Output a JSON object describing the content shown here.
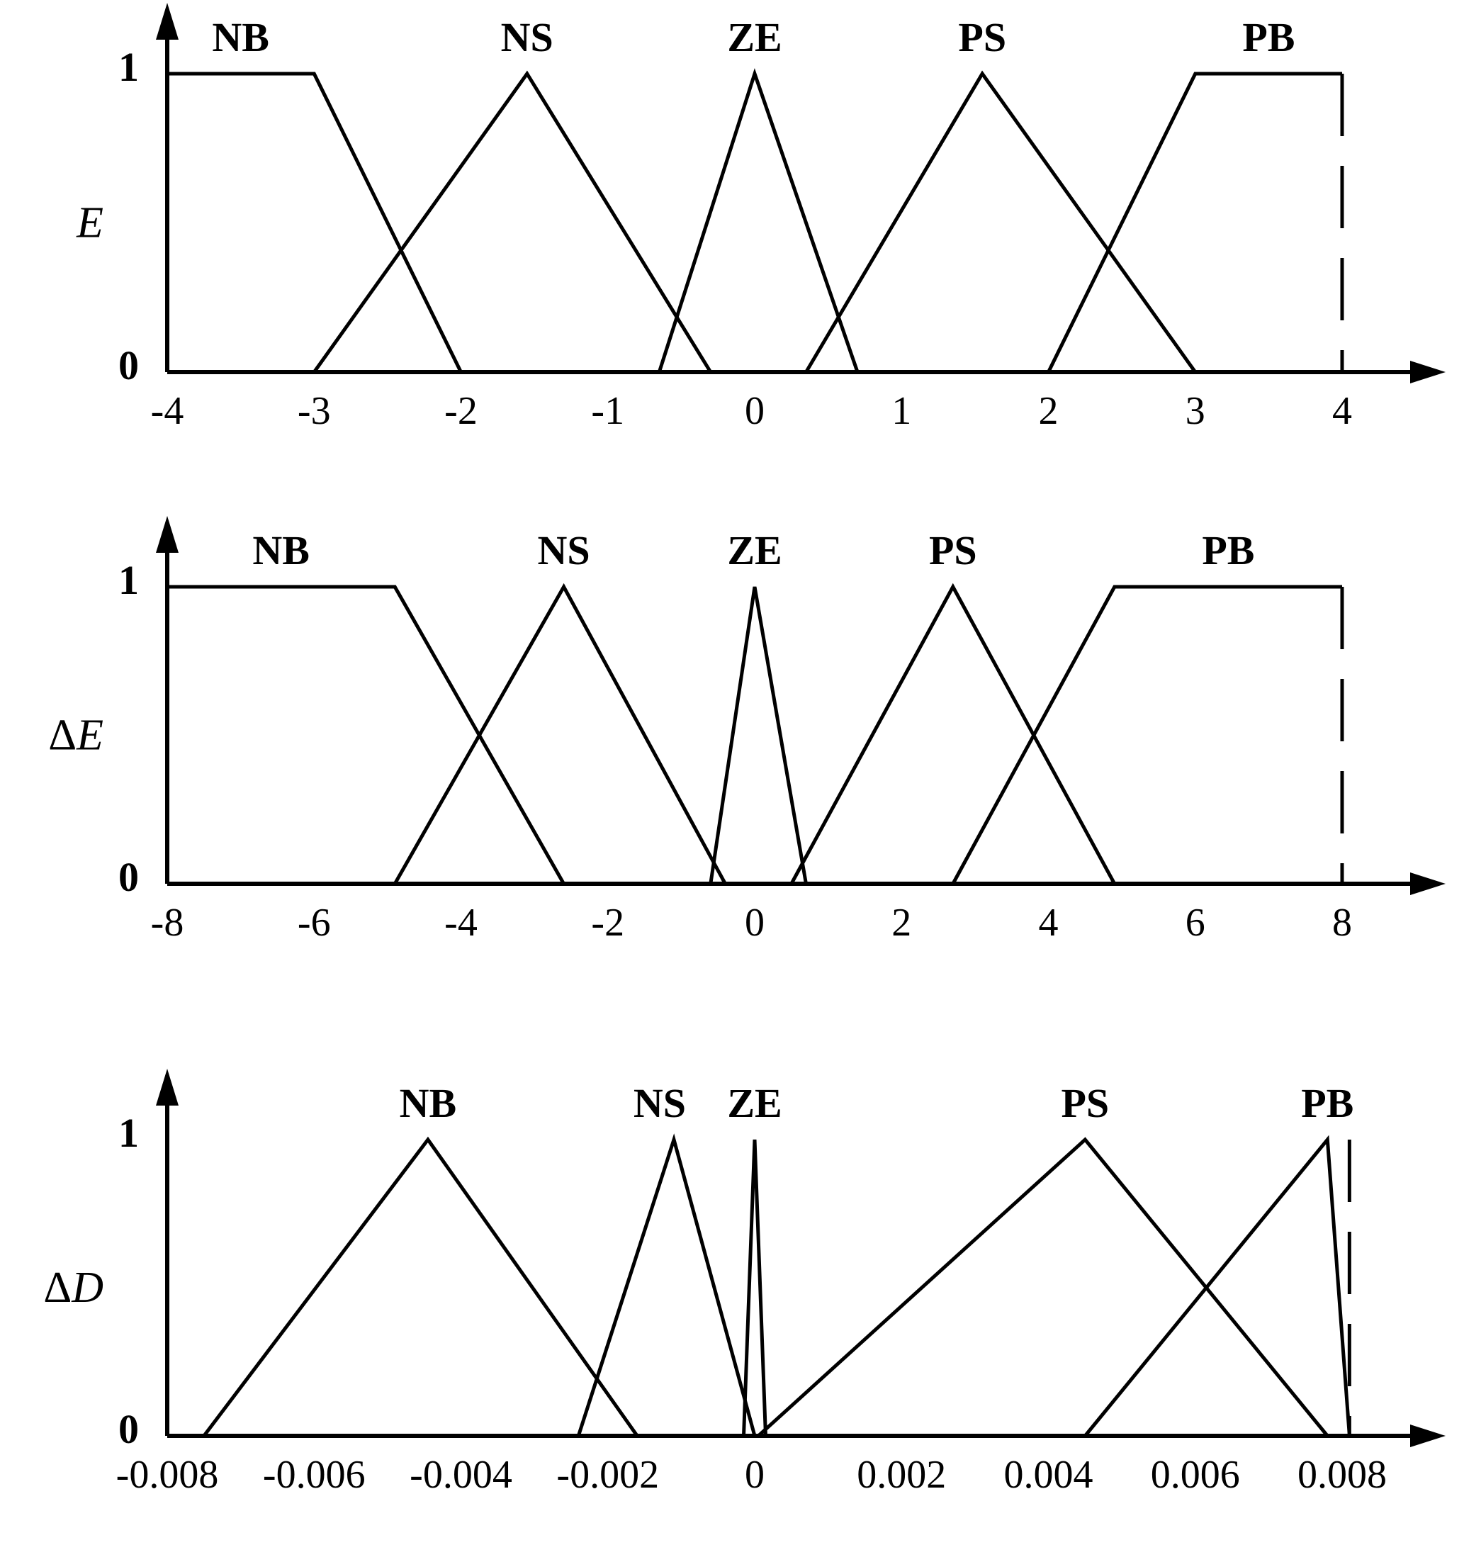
{
  "chart_data": [
    {
      "type": "line",
      "ylabel_prefix": "",
      "ylabel_var": "E",
      "y_ticks": [
        "0",
        "1"
      ],
      "x_ticks": [
        "-4",
        "-3",
        "-2",
        "-1",
        "0",
        "1",
        "2",
        "3",
        "4"
      ],
      "x_tick_values": [
        -4,
        -3,
        -2,
        -1,
        0,
        1,
        2,
        3,
        4
      ],
      "xlim": [
        -4,
        4.6
      ],
      "ylim": [
        0,
        1
      ],
      "dashed_x": 4,
      "series": [
        {
          "name": "NB",
          "x": [
            -4,
            -3,
            -2
          ],
          "y": [
            1,
            1,
            0
          ]
        },
        {
          "name": "NS",
          "x": [
            -3,
            -1.55,
            -0.3
          ],
          "y": [
            0,
            1,
            0
          ]
        },
        {
          "name": "ZE",
          "x": [
            -0.65,
            0,
            0.7
          ],
          "y": [
            0,
            1,
            0
          ]
        },
        {
          "name": "PS",
          "x": [
            0.35,
            1.55,
            3
          ],
          "y": [
            0,
            1,
            0
          ]
        },
        {
          "name": "PB",
          "x": [
            2,
            3,
            4
          ],
          "y": [
            0,
            1,
            1
          ]
        }
      ]
    },
    {
      "type": "line",
      "ylabel_prefix": "Δ",
      "ylabel_var": "E",
      "y_ticks": [
        "0",
        "1"
      ],
      "x_ticks": [
        "-8",
        "-6",
        "-4",
        "-2",
        "0",
        "2",
        "4",
        "6",
        "8"
      ],
      "x_tick_values": [
        -8,
        -6,
        -4,
        -2,
        0,
        2,
        4,
        6,
        8
      ],
      "xlim": [
        -8,
        9.2
      ],
      "ylim": [
        0,
        1
      ],
      "dashed_x": 8,
      "series": [
        {
          "name": "NB",
          "x": [
            -8,
            -4.9,
            -2.6
          ],
          "y": [
            1,
            1,
            0
          ]
        },
        {
          "name": "NS",
          "x": [
            -4.9,
            -2.6,
            -0.4
          ],
          "y": [
            0,
            1,
            0
          ]
        },
        {
          "name": "ZE",
          "x": [
            -0.6,
            0,
            0.7
          ],
          "y": [
            0,
            1,
            0
          ]
        },
        {
          "name": "PS",
          "x": [
            0.5,
            2.7,
            4.9
          ],
          "y": [
            0,
            1,
            0
          ]
        },
        {
          "name": "PB",
          "x": [
            2.7,
            4.9,
            8
          ],
          "y": [
            0,
            1,
            1
          ]
        }
      ]
    },
    {
      "type": "line",
      "ylabel_prefix": "Δ",
      "ylabel_var": "D",
      "y_ticks": [
        "0",
        "1"
      ],
      "x_ticks": [
        "-0.008",
        "-0.006",
        "-0.004",
        "-0.002",
        "0",
        "0.002",
        "0.004",
        "0.006",
        "0.008"
      ],
      "x_tick_values": [
        -0.008,
        -0.006,
        -0.004,
        -0.002,
        0,
        0.002,
        0.004,
        0.006,
        0.008
      ],
      "xlim": [
        -0.008,
        0.0092
      ],
      "ylim": [
        0,
        1
      ],
      "dashed_x": 0.0081,
      "series": [
        {
          "name": "NB",
          "x": [
            -0.0075,
            -0.00445,
            -0.0016
          ],
          "y": [
            0,
            1,
            0
          ]
        },
        {
          "name": "NS",
          "x": [
            -0.0024,
            -0.0011,
            0
          ],
          "y": [
            0,
            1,
            0
          ]
        },
        {
          "name": "ZE",
          "x": [
            -0.00015,
            0,
            0.00015
          ],
          "y": [
            0,
            1,
            0
          ]
        },
        {
          "name": "PS",
          "x": [
            5e-05,
            0.0045,
            0.0078
          ],
          "y": [
            0,
            1,
            0
          ]
        },
        {
          "name": "PB",
          "x": [
            0.0045,
            0.0078,
            0.0081
          ],
          "y": [
            0,
            1,
            0
          ]
        }
      ]
    }
  ]
}
